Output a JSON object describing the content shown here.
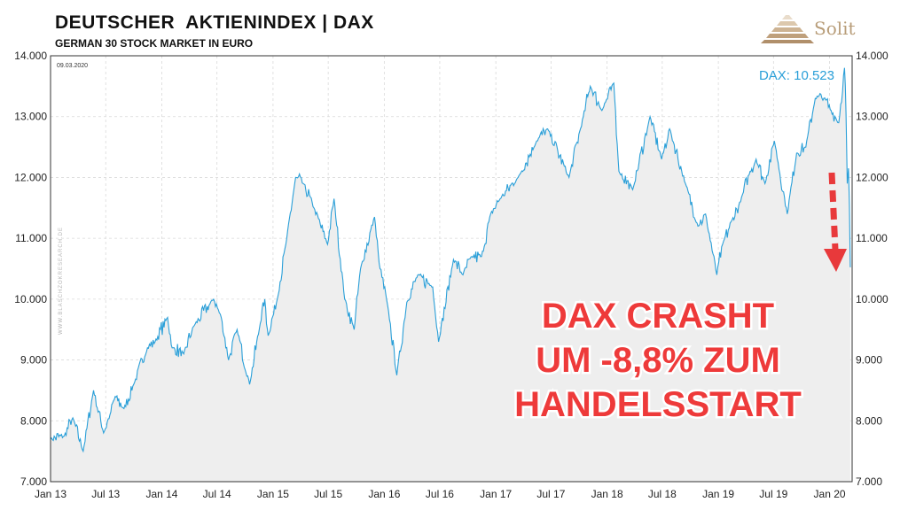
{
  "header": {
    "title": "DEUTSCHER  AKTIENINDEX | DAX",
    "subtitle": "GERMAN 30 STOCK MARKET IN EURO"
  },
  "logo": {
    "text": "Solit",
    "color": "#b89d79"
  },
  "chart_data": {
    "type": "area",
    "title": "DEUTSCHER  AKTIENINDEX | DAX",
    "subtitle": "GERMAN 30 STOCK MARKET IN EURO",
    "date_stamp": "09.03.2020",
    "watermark": "WWW.BLASCHZOKRESEARCH.DE",
    "last_value_label": "DAX: 10.523",
    "callout_lines": [
      "DAX CRASHT",
      "UM -8,8% ZUM",
      "HANDELSSTART"
    ],
    "x_ticks": [
      "Jan 13",
      "Jul 13",
      "Jan 14",
      "Jul 14",
      "Jan 15",
      "Jul 15",
      "Jan 16",
      "Jul 16",
      "Jan 17",
      "Jul 17",
      "Jan 18",
      "Jul 18",
      "Jan 19",
      "Jul 19",
      "Jan 20"
    ],
    "y_ticks": [
      "7.000",
      "8.000",
      "9.000",
      "10.000",
      "11.000",
      "12.000",
      "13.000",
      "14.000"
    ],
    "ylim": [
      7000,
      14000
    ],
    "xlim": [
      "2013-01-01",
      "2020-03-15"
    ],
    "grid": true,
    "line_color": "#2a9fd8",
    "fill_color": "#eeeeee",
    "series": [
      {
        "x": [
          "2013-01-01",
          "2013-02-15",
          "2013-03-15",
          "2013-04-18",
          "2013-05-22",
          "2013-06-24",
          "2013-07-15",
          "2013-08-01",
          "2013-08-30",
          "2013-10-01",
          "2013-11-15",
          "2013-12-10",
          "2014-01-20",
          "2014-02-04",
          "2014-03-14",
          "2014-04-15",
          "2014-06-20",
          "2014-07-15",
          "2014-08-08",
          "2014-09-05",
          "2014-10-16",
          "2014-11-20",
          "2014-12-05",
          "2014-12-16",
          "2015-01-15",
          "2015-02-15",
          "2015-03-16",
          "2015-04-10",
          "2015-05-15",
          "2015-06-29",
          "2015-07-20",
          "2015-08-24",
          "2015-09-24",
          "2015-10-15",
          "2015-11-30",
          "2015-12-15",
          "2016-01-15",
          "2016-02-11",
          "2016-03-15",
          "2016-04-20",
          "2016-06-08",
          "2016-06-27",
          "2016-08-15",
          "2016-09-15",
          "2016-10-15",
          "2016-11-15",
          "2016-12-15",
          "2017-01-15",
          "2017-03-15",
          "2017-05-15",
          "2017-06-20",
          "2017-08-29",
          "2017-10-15",
          "2017-11-07",
          "2017-12-15",
          "2018-01-23",
          "2018-02-09",
          "2018-03-26",
          "2018-05-22",
          "2018-06-29",
          "2018-07-25",
          "2018-09-15",
          "2018-10-26",
          "2018-11-20",
          "2018-12-27",
          "2019-01-15",
          "2019-02-15",
          "2019-03-15",
          "2019-04-15",
          "2019-05-05",
          "2019-06-03",
          "2019-07-04",
          "2019-08-15",
          "2019-09-15",
          "2019-10-15",
          "2019-11-15",
          "2019-12-13",
          "2020-01-06",
          "2020-01-31",
          "2020-02-19",
          "2020-02-24",
          "2020-02-28",
          "2020-03-03",
          "2020-03-06",
          "2020-03-09"
        ],
        "values": [
          7700,
          7750,
          8050,
          7500,
          8500,
          7800,
          8100,
          8400,
          8200,
          8600,
          9200,
          9300,
          9700,
          9200,
          9100,
          9550,
          10000,
          9700,
          9000,
          9500,
          8600,
          9600,
          10000,
          9400,
          10000,
          11000,
          12000,
          11900,
          11500,
          10900,
          11650,
          10000,
          9500,
          10500,
          11350,
          10600,
          9800,
          8750,
          9950,
          10400,
          10200,
          9300,
          10650,
          10400,
          10700,
          10700,
          11400,
          11650,
          12000,
          12600,
          12800,
          12000,
          13000,
          13500,
          13100,
          13550,
          12100,
          11800,
          13000,
          12300,
          12800,
          11900,
          11200,
          11400,
          10400,
          10900,
          11300,
          11600,
          12100,
          12300,
          11900,
          12600,
          11400,
          12400,
          12500,
          13300,
          13300,
          13100,
          12900,
          13800,
          13050,
          11900,
          12150,
          11550,
          10523
        ]
      }
    ]
  }
}
